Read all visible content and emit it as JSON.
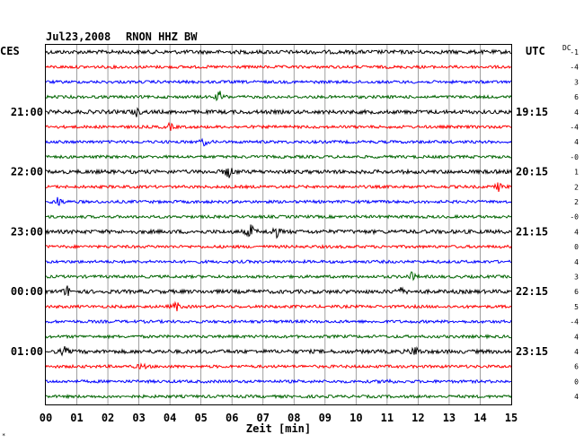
{
  "header": {
    "date": "Jul23,2008",
    "station": "RNON HHZ BW",
    "left_zone": "CES",
    "right_zone": "UTC",
    "dc_label": "DC"
  },
  "chart_data": {
    "type": "line",
    "title": "Jul23,2008   RNON HHZ BW",
    "xlabel": "Zeit [min]",
    "xlim": [
      0,
      15
    ],
    "x_ticks": [
      "00",
      "01",
      "02",
      "03",
      "04",
      "05",
      "06",
      "07",
      "08",
      "09",
      "10",
      "11",
      "12",
      "13",
      "14",
      "15"
    ],
    "grid": true,
    "traces_per_block": 4,
    "trace_colors": [
      "#000000",
      "#ff0000",
      "#0000ff",
      "#006400"
    ],
    "left_time_labels": [
      {
        "trace": 4,
        "label": "21:00"
      },
      {
        "trace": 8,
        "label": "22:00"
      },
      {
        "trace": 12,
        "label": "23:00"
      },
      {
        "trace": 16,
        "label": "00:00"
      },
      {
        "trace": 20,
        "label": "01:00"
      }
    ],
    "right_time_labels": [
      {
        "trace": 4,
        "label": "19:15"
      },
      {
        "trace": 8,
        "label": "20:15"
      },
      {
        "trace": 12,
        "label": "21:15"
      },
      {
        "trace": 16,
        "label": "22:15"
      },
      {
        "trace": 20,
        "label": "23:15"
      }
    ],
    "dc_offsets": [
      "-1",
      "-4",
      "3",
      "6",
      "4",
      "-4",
      "4",
      "-0",
      "1",
      "2",
      "2",
      "-0",
      "4",
      "0",
      "4",
      "3",
      "6",
      "5",
      "-4",
      "4",
      "4",
      "6",
      "0",
      "4"
    ],
    "events": [
      {
        "trace": 3,
        "minute": 5.6,
        "amplitude": 7
      },
      {
        "trace": 4,
        "minute": 2.9,
        "amplitude": 5
      },
      {
        "trace": 5,
        "minute": 4.0,
        "amplitude": 4
      },
      {
        "trace": 6,
        "minute": 5.1,
        "amplitude": 4
      },
      {
        "trace": 8,
        "minute": 5.9,
        "amplitude": 8
      },
      {
        "trace": 9,
        "minute": 14.6,
        "amplitude": 5
      },
      {
        "trace": 10,
        "minute": 0.4,
        "amplitude": 6
      },
      {
        "trace": 12,
        "minute": 6.6,
        "amplitude": 9
      },
      {
        "trace": 12,
        "minute": 7.4,
        "amplitude": 8
      },
      {
        "trace": 15,
        "minute": 11.8,
        "amplitude": 5
      },
      {
        "trace": 16,
        "minute": 0.7,
        "amplitude": 6
      },
      {
        "trace": 16,
        "minute": 11.4,
        "amplitude": 6
      },
      {
        "trace": 17,
        "minute": 4.2,
        "amplitude": 6
      },
      {
        "trace": 20,
        "minute": 0.6,
        "amplitude": 5
      },
      {
        "trace": 20,
        "minute": 11.9,
        "amplitude": 7
      },
      {
        "trace": 21,
        "minute": 3.1,
        "amplitude": 4
      },
      {
        "trace": 22,
        "minute": 11.0,
        "amplitude": 4
      }
    ]
  }
}
